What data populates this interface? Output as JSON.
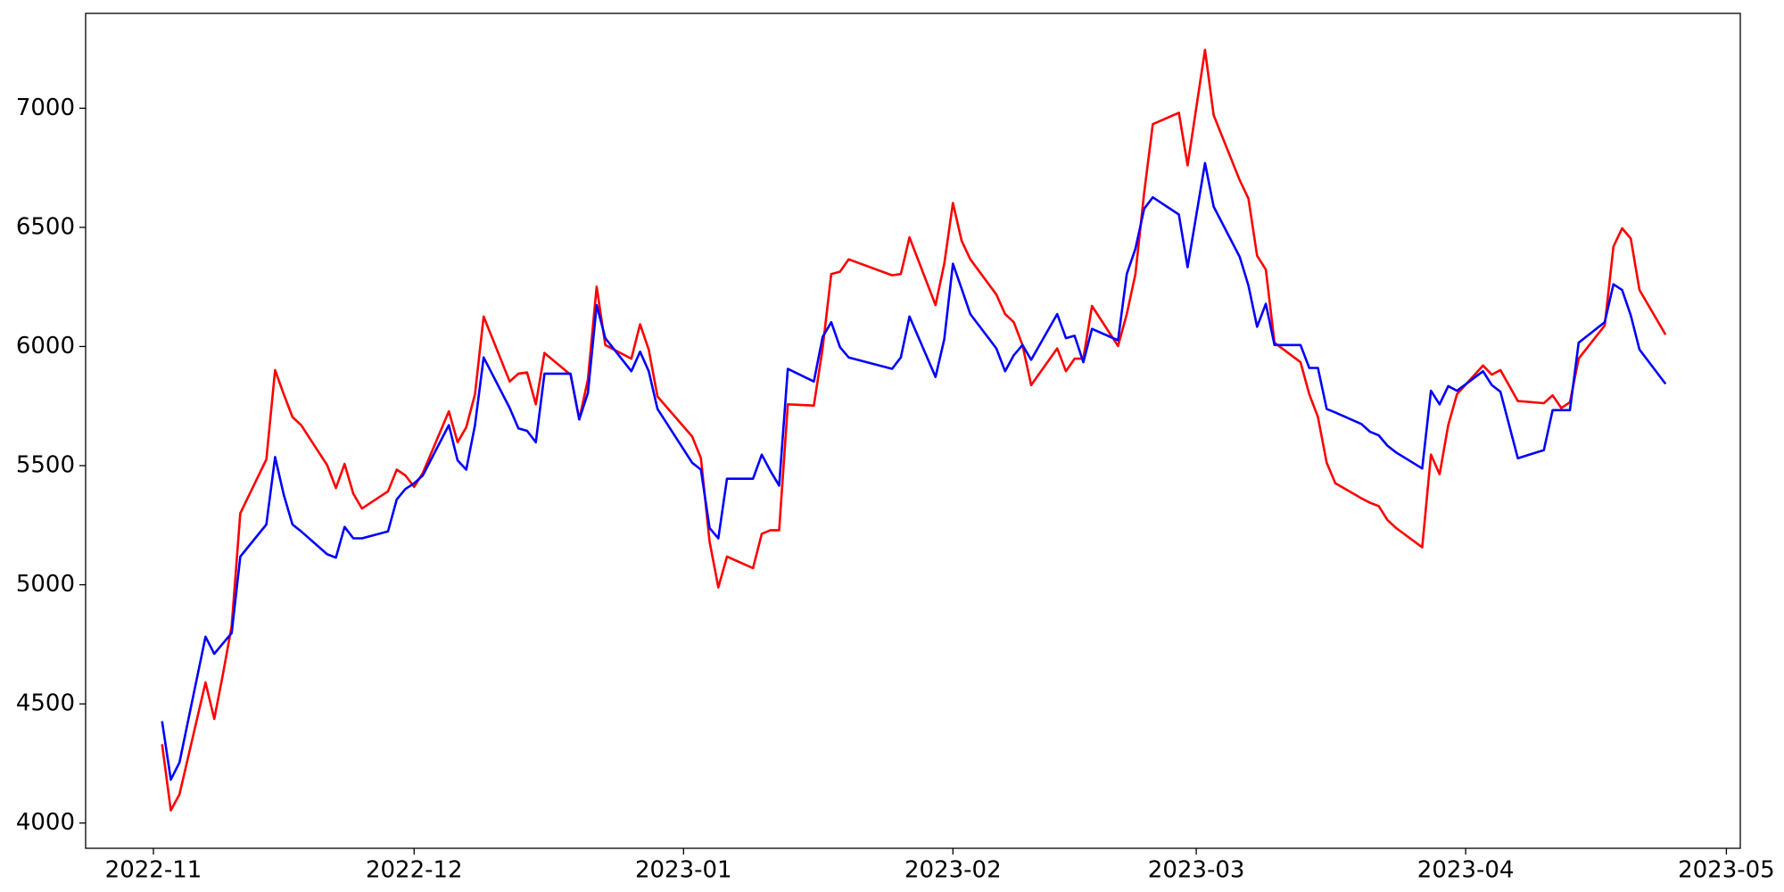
{
  "chart_data": {
    "type": "line",
    "x": [
      1,
      2,
      3,
      6,
      7,
      8,
      9,
      10,
      13,
      14,
      15,
      16,
      17,
      20,
      21,
      22,
      23,
      24,
      27,
      28,
      29,
      30,
      31,
      34,
      35,
      36,
      37,
      38,
      41,
      42,
      43,
      44,
      45,
      48,
      49,
      50,
      51,
      52,
      55,
      56,
      57,
      58,
      62,
      63,
      64,
      65,
      66,
      69,
      70,
      71,
      72,
      73,
      76,
      77,
      78,
      79,
      80,
      85,
      86,
      87,
      90,
      91,
      92,
      93,
      94,
      97,
      98,
      99,
      100,
      101,
      104,
      105,
      106,
      107,
      108,
      111,
      112,
      113,
      114,
      115,
      118,
      119,
      121,
      122,
      125,
      126,
      127,
      128,
      129,
      132,
      133,
      134,
      135,
      136,
      139,
      140,
      141,
      142,
      143,
      146,
      147,
      148,
      149,
      150,
      153,
      154,
      155,
      157,
      160,
      161,
      162,
      163,
      164,
      167,
      168,
      169,
      170,
      171,
      174
    ],
    "series": [
      {
        "color": "#ff0000",
        "values": [
          4331,
          4053,
          4120,
          4590,
          4437,
          4624,
          4826,
          5300,
          5526,
          5901,
          5800,
          5704,
          5670,
          5502,
          5406,
          5507,
          5382,
          5320,
          5392,
          5483,
          5459,
          5411,
          5469,
          5728,
          5598,
          5661,
          5800,
          6126,
          5853,
          5886,
          5891,
          5757,
          5973,
          5882,
          5694,
          5862,
          6251,
          6006,
          5949,
          6093,
          5987,
          5790,
          5622,
          5531,
          5181,
          4989,
          5118,
          5070,
          5214,
          5229,
          5229,
          5757,
          5752,
          5992,
          6304,
          6314,
          6366,
          6299,
          6304,
          6458,
          6174,
          6347,
          6602,
          6443,
          6366,
          6218,
          6136,
          6102,
          6006,
          5838,
          5992,
          5896,
          5949,
          5949,
          6170,
          6002,
          6136,
          6304,
          6645,
          6933,
          6981,
          6760,
          7245,
          6971,
          6698,
          6621,
          6381,
          6323,
          6016,
          5934,
          5800,
          5704,
          5512,
          5426,
          5363,
          5344,
          5330,
          5272,
          5238,
          5157,
          5546,
          5464,
          5670,
          5800,
          5920,
          5882,
          5901,
          5771,
          5762,
          5795,
          5742,
          5766,
          5949,
          6088,
          6419,
          6496,
          6453,
          6237,
          6050
        ]
      },
      {
        "color": "#0000ff",
        "values": [
          4427,
          4182,
          4254,
          4782,
          4710,
          4754,
          4797,
          5118,
          5253,
          5536,
          5378,
          5253,
          5224,
          5128,
          5114,
          5243,
          5195,
          5195,
          5224,
          5358,
          5402,
          5426,
          5459,
          5670,
          5522,
          5483,
          5670,
          5954,
          5742,
          5656,
          5646,
          5598,
          5886,
          5886,
          5694,
          5805,
          6174,
          6035,
          5896,
          5978,
          5896,
          5738,
          5512,
          5483,
          5238,
          5195,
          5445,
          5445,
          5546,
          5478,
          5416,
          5906,
          5853,
          6040,
          6102,
          5997,
          5954,
          5906,
          5954,
          6126,
          5872,
          6030,
          6347,
          6242,
          6136,
          5992,
          5896,
          5963,
          6006,
          5944,
          6136,
          6035,
          6045,
          5934,
          6074,
          6026,
          6304,
          6410,
          6578,
          6626,
          6554,
          6333,
          6770,
          6587,
          6376,
          6256,
          6083,
          6179,
          6006,
          6006,
          5910,
          5910,
          5738,
          5723,
          5675,
          5642,
          5627,
          5584,
          5555,
          5488,
          5814,
          5757,
          5834,
          5814,
          5896,
          5838,
          5810,
          5531,
          5565,
          5733,
          5733,
          5733,
          6016,
          6102,
          6261,
          6237,
          6131,
          5987,
          5843
        ]
      }
    ],
    "xlim": [
      -7.8,
      182.6
    ],
    "xticks": [
      {
        "value": 0,
        "label": "2022-11"
      },
      {
        "value": 30,
        "label": "2022-12"
      },
      {
        "value": 61,
        "label": "2023-01"
      },
      {
        "value": 92,
        "label": "2023-02"
      },
      {
        "value": 120,
        "label": "2023-03"
      },
      {
        "value": 151,
        "label": "2023-04"
      },
      {
        "value": 181,
        "label": "2023-05"
      }
    ],
    "ylim": [
      3894,
      7398
    ],
    "yticks": [
      4000,
      4500,
      5000,
      5500,
      6000,
      6500,
      7000
    ]
  }
}
